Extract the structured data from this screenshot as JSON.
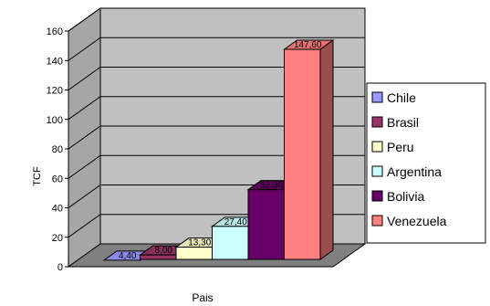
{
  "chart_data": {
    "type": "bar",
    "title": "",
    "xlabel": "Pais",
    "ylabel": "TCF",
    "ylim": [
      0,
      160
    ],
    "yticks": [
      0,
      20,
      40,
      60,
      80,
      100,
      120,
      140,
      160
    ],
    "grid": true,
    "legend_position": "right",
    "style": "3d",
    "series": [
      {
        "name": "Chile",
        "value": 4.4,
        "label": "4,40",
        "color": "#9999ff"
      },
      {
        "name": "Brasil",
        "value": 8.0,
        "label": "8,00",
        "color": "#993366"
      },
      {
        "name": "Peru",
        "value": 13.3,
        "label": "13,30",
        "color": "#ffffcc"
      },
      {
        "name": "Argentina",
        "value": 27.4,
        "label": "27,40",
        "color": "#ccffff"
      },
      {
        "name": "Bolivia",
        "value": 52.3,
        "label": "52,30",
        "color": "#660066"
      },
      {
        "name": "Venezuela",
        "value": 147.6,
        "label": "147,60",
        "color": "#ff8080"
      }
    ]
  }
}
